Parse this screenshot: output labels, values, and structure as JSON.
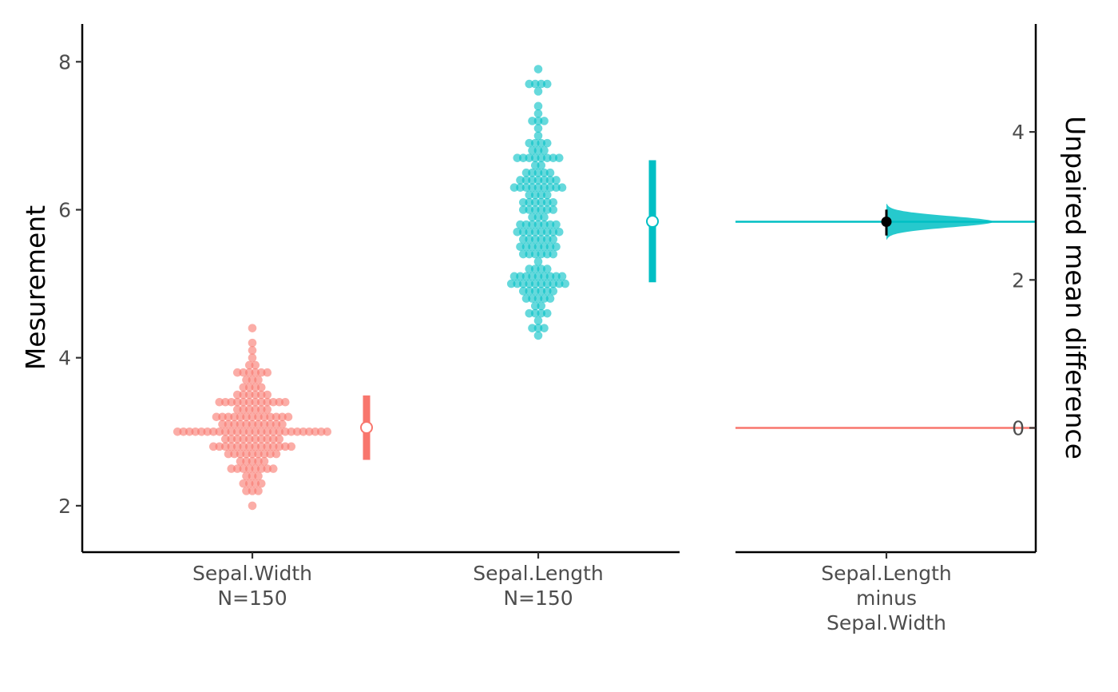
{
  "chart_data": [
    {
      "type": "scatter",
      "subtype": "swarm",
      "ylabel": "Mesurement",
      "ylim": [
        1.4,
        8.5
      ],
      "yticks": [
        2,
        4,
        6,
        8
      ],
      "categories": [
        {
          "name": "Sepal.Width",
          "n_label": "N=150",
          "color": "#F8766D"
        },
        {
          "name": "Sepal.Length",
          "n_label": "N=150",
          "color": "#00BFC4"
        }
      ],
      "series": [
        {
          "name": "Sepal.Width",
          "color": "#F8766D",
          "values": [
            3.5,
            3.0,
            3.2,
            3.1,
            3.6,
            3.9,
            3.4,
            3.4,
            2.9,
            3.1,
            3.7,
            3.4,
            3.0,
            3.0,
            4.0,
            4.4,
            3.9,
            3.5,
            3.8,
            3.8,
            3.4,
            3.7,
            3.6,
            3.3,
            3.4,
            3.0,
            3.4,
            3.5,
            3.4,
            3.2,
            3.1,
            3.4,
            4.1,
            4.2,
            3.1,
            3.2,
            3.5,
            3.6,
            3.0,
            3.4,
            3.5,
            2.3,
            3.2,
            3.5,
            3.8,
            3.0,
            3.8,
            3.2,
            3.7,
            3.3,
            3.2,
            3.2,
            3.1,
            2.3,
            2.8,
            2.8,
            3.3,
            2.4,
            2.9,
            2.7,
            2.0,
            3.0,
            2.2,
            2.9,
            2.9,
            3.1,
            3.0,
            2.7,
            2.2,
            2.5,
            3.2,
            2.8,
            2.5,
            2.8,
            2.9,
            3.0,
            2.8,
            3.0,
            2.9,
            2.6,
            2.4,
            2.4,
            2.7,
            2.7,
            3.0,
            3.4,
            3.1,
            2.3,
            3.0,
            2.5,
            2.6,
            3.0,
            2.6,
            2.3,
            2.7,
            3.0,
            2.9,
            2.9,
            2.5,
            2.8,
            3.3,
            2.7,
            3.0,
            2.9,
            3.0,
            3.0,
            2.5,
            2.9,
            2.5,
            3.6,
            3.2,
            2.7,
            3.0,
            2.5,
            2.8,
            3.2,
            3.0,
            3.8,
            2.6,
            2.2,
            3.2,
            2.8,
            2.8,
            2.7,
            3.3,
            3.2,
            2.8,
            3.0,
            2.8,
            3.0,
            2.8,
            3.8,
            2.8,
            2.8,
            2.6,
            3.0,
            3.4,
            3.1,
            3.0,
            3.1,
            3.1,
            3.1,
            2.7,
            3.2,
            3.3,
            3.0,
            2.5,
            3.0,
            3.4,
            3.0
          ],
          "summary": {
            "mean": 3.057,
            "lower": 2.62,
            "upper": 3.49
          }
        },
        {
          "name": "Sepal.Length",
          "color": "#00BFC4",
          "values": [
            5.1,
            4.9,
            4.7,
            4.6,
            5.0,
            5.4,
            4.6,
            5.0,
            4.4,
            4.9,
            5.4,
            4.8,
            4.8,
            4.3,
            5.8,
            5.7,
            5.4,
            5.1,
            5.7,
            5.1,
            5.4,
            5.1,
            4.6,
            5.1,
            4.8,
            5.0,
            5.0,
            5.2,
            5.2,
            4.7,
            4.8,
            5.4,
            5.2,
            5.5,
            4.9,
            5.0,
            5.5,
            4.9,
            4.4,
            5.1,
            5.0,
            4.5,
            4.4,
            5.0,
            5.1,
            4.8,
            5.1,
            4.6,
            5.3,
            5.0,
            7.0,
            6.4,
            6.9,
            5.5,
            6.5,
            5.7,
            6.3,
            4.9,
            6.6,
            5.2,
            5.0,
            5.9,
            6.0,
            6.1,
            5.6,
            6.7,
            5.6,
            5.8,
            6.2,
            5.6,
            5.9,
            6.1,
            6.3,
            6.1,
            6.4,
            6.6,
            6.8,
            6.7,
            6.0,
            5.7,
            5.5,
            5.5,
            5.8,
            6.0,
            5.4,
            6.0,
            6.7,
            6.3,
            5.6,
            5.5,
            5.5,
            6.1,
            5.8,
            5.0,
            5.6,
            5.7,
            5.7,
            6.2,
            5.1,
            5.7,
            6.3,
            5.8,
            7.1,
            6.3,
            6.5,
            7.6,
            4.9,
            7.3,
            6.7,
            7.2,
            6.5,
            6.4,
            6.8,
            5.7,
            5.8,
            6.4,
            6.5,
            7.7,
            7.7,
            6.0,
            6.9,
            5.6,
            7.7,
            6.3,
            6.7,
            7.2,
            6.2,
            6.1,
            6.4,
            7.2,
            7.4,
            7.9,
            6.4,
            6.3,
            6.1,
            7.7,
            6.3,
            6.4,
            6.0,
            6.9,
            6.7,
            6.9,
            5.8,
            6.8,
            6.7,
            6.7,
            6.3,
            6.5,
            6.2,
            5.9
          ],
          "summary": {
            "mean": 5.843,
            "lower": 5.02,
            "upper": 6.67
          }
        }
      ]
    },
    {
      "type": "area",
      "subtype": "bootstrap-distribution",
      "ylabel": "Unpaired mean difference",
      "ylim": [
        -1.65,
        5.45
      ],
      "yticks": [
        0,
        2,
        4
      ],
      "categories": [
        {
          "line1": "Sepal.Length",
          "line2": "minus",
          "line3": "Sepal.Width"
        }
      ],
      "mean_difference": 2.786,
      "ci": [
        2.6,
        2.95
      ],
      "reference_lines": [
        {
          "group": "Sepal.Length",
          "value": 2.786,
          "color": "#00BFC4"
        },
        {
          "group": "Sepal.Width",
          "value": 0,
          "color": "#F8766D"
        }
      ],
      "distribution_color": "#00BFC4"
    }
  ]
}
